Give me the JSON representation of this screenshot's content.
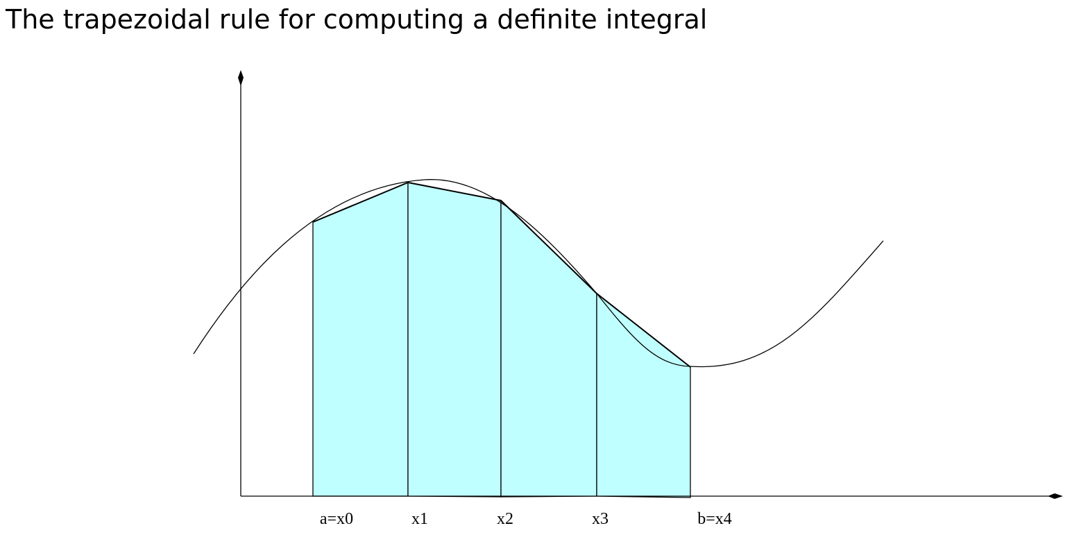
{
  "title": "The trapezoidal rule for computing a definite integral",
  "nodes": [
    {
      "label": "a=x0"
    },
    {
      "label": "x1"
    },
    {
      "label": "x2"
    },
    {
      "label": "x3"
    },
    {
      "label": "b=x4"
    }
  ],
  "colors": {
    "trapezoid_fill": "#c0ffff",
    "line": "#000000",
    "background": "#ffffff"
  }
}
